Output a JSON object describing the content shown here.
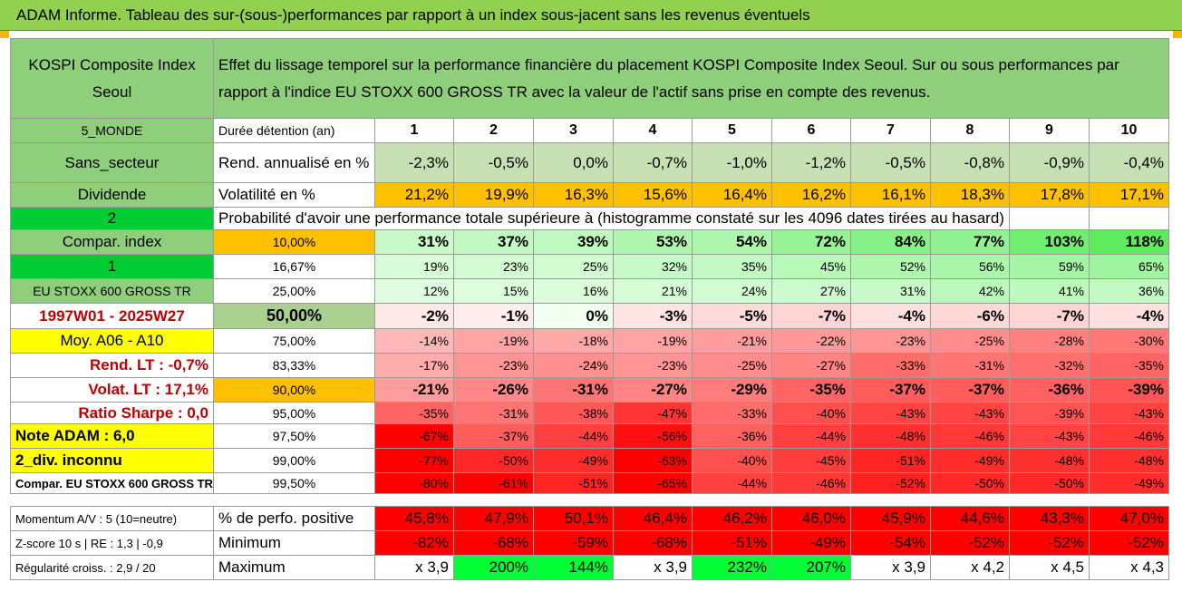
{
  "title": "ADAM Informe. Tableau des sur-(sous-)performances par rapport à un index sous-jacent sans les revenus éventuels",
  "header": {
    "asset": "KOSPI Composite Index Seoul",
    "description": "Effet du lissage temporel sur la performance financière du placement KOSPI Composite Index Seoul. Sur ou sous performances par rapport à l'indice EU STOXX 600 GROSS TR avec la valeur de l'actif sans prise en compte des revenus."
  },
  "years": [
    "1",
    "2",
    "3",
    "4",
    "5",
    "6",
    "7",
    "8",
    "9",
    "10"
  ],
  "stats": {
    "region": "5_MONDE",
    "duration_label": "Durée détention (an)",
    "sector": "Sans_secteur",
    "rend_label": "Rend. annualisé en %",
    "rend": [
      "-2,3%",
      "-0,5%",
      "0,0%",
      "-0,7%",
      "-1,0%",
      "-1,2%",
      "-0,5%",
      "-0,8%",
      "-0,9%",
      "-0,4%"
    ],
    "dividend": "Dividende",
    "vol_label": "Volatilité en %",
    "vol": [
      "21,2%",
      "19,9%",
      "16,3%",
      "15,6%",
      "16,4%",
      "16,2%",
      "16,1%",
      "18,3%",
      "17,8%",
      "17,1%"
    ]
  },
  "prob": {
    "num": "2",
    "caption": "Probabilité d'avoir une performance totale supérieure à (histogramme constaté sur les 4096 dates tirées au hasard)"
  },
  "rows": [
    {
      "left": "Compar. index",
      "pct": "10,00%",
      "vals": [
        "31%",
        "37%",
        "39%",
        "53%",
        "54%",
        "72%",
        "84%",
        "77%",
        "103%",
        "118%"
      ]
    },
    {
      "left": "1",
      "pct": "16,67%",
      "vals": [
        "19%",
        "23%",
        "25%",
        "32%",
        "35%",
        "45%",
        "52%",
        "56%",
        "59%",
        "65%"
      ]
    },
    {
      "left": "EU STOXX 600 GROSS TR",
      "pct": "25,00%",
      "vals": [
        "12%",
        "15%",
        "16%",
        "21%",
        "24%",
        "27%",
        "31%",
        "42%",
        "41%",
        "36%"
      ]
    },
    {
      "left": "1997W01 - 2025W27",
      "pct": "50,00%",
      "vals": [
        "-2%",
        "-1%",
        "0%",
        "-3%",
        "-5%",
        "-7%",
        "-4%",
        "-6%",
        "-7%",
        "-4%"
      ]
    },
    {
      "left": "Moy. A06 - A10",
      "pct": "75,00%",
      "vals": [
        "-14%",
        "-19%",
        "-18%",
        "-19%",
        "-21%",
        "-22%",
        "-23%",
        "-25%",
        "-28%",
        "-30%"
      ]
    },
    {
      "left": "Rend. LT :    -0,7%",
      "pct": "83,33%",
      "vals": [
        "-17%",
        "-23%",
        "-24%",
        "-23%",
        "-25%",
        "-27%",
        "-33%",
        "-31%",
        "-32%",
        "-35%"
      ]
    },
    {
      "left": "Volat. LT :    17,1%",
      "pct": "90,00%",
      "vals": [
        "-21%",
        "-26%",
        "-31%",
        "-27%",
        "-29%",
        "-35%",
        "-37%",
        "-37%",
        "-36%",
        "-39%"
      ]
    },
    {
      "left": "Ratio Sharpe :    0,0",
      "pct": "95,00%",
      "vals": [
        "-35%",
        "-31%",
        "-38%",
        "-47%",
        "-33%",
        "-40%",
        "-43%",
        "-43%",
        "-39%",
        "-43%"
      ]
    },
    {
      "left": "Note ADAM : 6,0",
      "pct": "97,50%",
      "vals": [
        "-67%",
        "-37%",
        "-44%",
        "-56%",
        "-36%",
        "-44%",
        "-48%",
        "-46%",
        "-43%",
        "-46%"
      ]
    },
    {
      "left": "2_div. inconnu",
      "pct": "99,00%",
      "vals": [
        "-77%",
        "-50%",
        "-49%",
        "-63%",
        "-40%",
        "-45%",
        "-51%",
        "-49%",
        "-48%",
        "-48%"
      ]
    },
    {
      "left": "Compar. EU STOXX 600 GROSS TR",
      "pct": "99,50%",
      "vals": [
        "-80%",
        "-61%",
        "-51%",
        "-65%",
        "-44%",
        "-46%",
        "-52%",
        "-50%",
        "-50%",
        "-49%"
      ]
    }
  ],
  "bottom": [
    {
      "left": "Momentum A/V : 5 (10=neutre)",
      "label": "% de perfo. positive",
      "vals": [
        "45,8%",
        "47,9%",
        "50,1%",
        "46,4%",
        "46,2%",
        "46,0%",
        "45,9%",
        "44,6%",
        "43,3%",
        "47,0%"
      ]
    },
    {
      "left": "Z-score 10 s | RE : 1,3 | -0,9",
      "label": "Minimum",
      "vals": [
        "-82%",
        "-68%",
        "-59%",
        "-68%",
        "-51%",
        "-49%",
        "-54%",
        "-52%",
        "-52%",
        "-52%"
      ]
    },
    {
      "left": "Régularité croiss. : 2,9 / 20",
      "label": "Maximum",
      "vals": [
        "x 3,9",
        "200%",
        "144%",
        "x 3,9",
        "232%",
        "207%",
        "x 3,9",
        "x 4,2",
        "x 4,5",
        "x 4,3"
      ]
    }
  ],
  "colors": {
    "title_bg": "#92d050",
    "header_bg": "#8fcf7c",
    "rend_bg": "#c6e0b4",
    "vol_bg": "#ffc000",
    "neg_red": "#ff0000",
    "pos_green": "#00ff33",
    "yellow": "#ffff00",
    "dark_red_text": "#c00000",
    "accent_green": "#00cc33"
  }
}
